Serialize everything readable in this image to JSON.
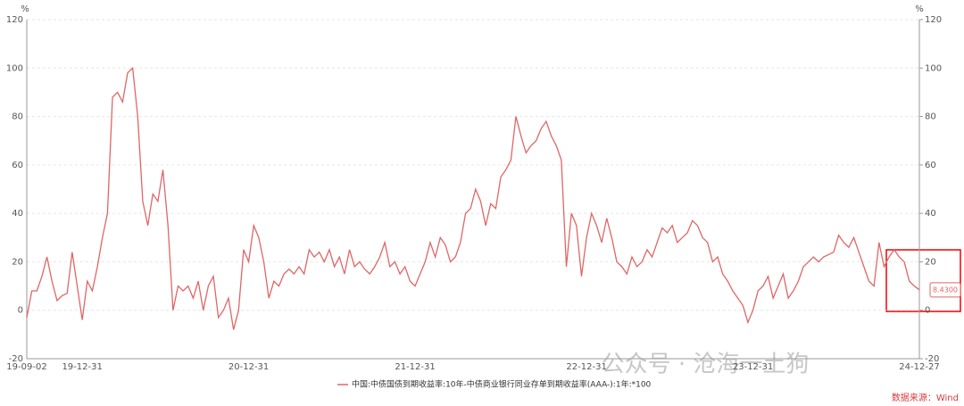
{
  "chart_data": {
    "type": "line",
    "y_unit": "%",
    "y2_unit": "%",
    "categories": [
      "19-09-02",
      null,
      null,
      null,
      null,
      null,
      null,
      null,
      null,
      null,
      null,
      "19-12-31",
      null,
      null,
      null,
      null,
      null,
      null,
      null,
      null,
      null,
      null,
      null,
      null,
      null,
      null,
      null,
      null,
      null,
      null,
      null,
      null,
      null,
      null,
      null,
      null,
      null,
      null,
      null,
      null,
      null,
      null,
      null,
      null,
      "20-12-31",
      null,
      null,
      null,
      null,
      null,
      null,
      null,
      null,
      null,
      null,
      null,
      null,
      null,
      null,
      null,
      null,
      null,
      null,
      null,
      null,
      null,
      null,
      null,
      null,
      null,
      null,
      null,
      null,
      null,
      null,
      null,
      null,
      "21-12-31",
      null,
      null,
      null,
      null,
      null,
      null,
      null,
      null,
      null,
      null,
      null,
      null,
      null,
      null,
      null,
      null,
      null,
      null,
      null,
      null,
      null,
      null,
      null,
      null,
      null,
      null,
      null,
      null,
      null,
      null,
      null,
      null,
      null,
      "22-12-31",
      null,
      null,
      null,
      null,
      null,
      null,
      null,
      null,
      null,
      null,
      null,
      null,
      null,
      null,
      null,
      null,
      null,
      null,
      null,
      null,
      null,
      null,
      null,
      null,
      null,
      null,
      null,
      null,
      null,
      null,
      null,
      null,
      "23-12-31",
      null,
      null,
      null,
      null,
      null,
      null,
      null,
      null,
      null,
      null,
      null,
      null,
      null,
      null,
      null,
      null,
      null,
      null,
      null,
      null,
      null,
      null,
      null,
      null,
      null,
      null,
      null,
      null,
      null,
      null,
      null,
      null,
      "24-12-27"
    ],
    "series": [
      {
        "name": "中国:中债国债到期收益率:10年-中债商业银行同业存单到期收益率(AAA-):1年:*100",
        "color": "#e06666",
        "values": [
          -3,
          8,
          8,
          14,
          22,
          12,
          4,
          6,
          7,
          24,
          10,
          -4,
          12,
          8,
          18,
          30,
          40,
          88,
          90,
          86,
          98,
          100,
          80,
          45,
          35,
          48,
          45,
          58,
          35,
          0,
          10,
          8,
          10,
          5,
          12,
          0,
          10,
          14,
          -3,
          0,
          5,
          -8,
          0,
          25,
          20,
          35,
          30,
          20,
          5,
          12,
          10,
          15,
          17,
          15,
          18,
          15,
          25,
          22,
          24,
          20,
          25,
          18,
          22,
          15,
          25,
          18,
          20,
          17,
          15,
          18,
          22,
          28,
          18,
          20,
          15,
          18,
          12,
          10,
          15,
          20,
          28,
          22,
          30,
          27,
          20,
          22,
          28,
          40,
          42,
          50,
          45,
          35,
          44,
          42,
          55,
          58,
          62,
          80,
          72,
          65,
          68,
          70,
          75,
          78,
          72,
          68,
          62,
          18,
          40,
          35,
          14,
          30,
          40,
          35,
          28,
          38,
          30,
          20,
          18,
          15,
          22,
          18,
          20,
          25,
          22,
          28,
          34,
          32,
          35,
          28,
          30,
          32,
          37,
          35,
          30,
          28,
          20,
          22,
          15,
          12,
          8,
          5,
          2,
          -5,
          0,
          8,
          10,
          14,
          5,
          10,
          15,
          5,
          8,
          12,
          18,
          20,
          22,
          20,
          22,
          23,
          24,
          31,
          28,
          26,
          30,
          24,
          18,
          12,
          10,
          28,
          18,
          22,
          25,
          22,
          20,
          12,
          10,
          8.43
        ],
        "value_labels": [
          null,
          null,
          null,
          null,
          null,
          null,
          null,
          null,
          null,
          null,
          null,
          null,
          null,
          null,
          null,
          null,
          null,
          null,
          null,
          null,
          null,
          null,
          null,
          null,
          null,
          null,
          null,
          null,
          null,
          null,
          null,
          null,
          null,
          null,
          null,
          null,
          null,
          null,
          null,
          null,
          null,
          null,
          null,
          null,
          null,
          null,
          null,
          null,
          null,
          null,
          null,
          null,
          null,
          null,
          null,
          null,
          null,
          null,
          null,
          null,
          null,
          null,
          null,
          null,
          null,
          null,
          null,
          null,
          null,
          null,
          null,
          null,
          null,
          null,
          null,
          null,
          null,
          null,
          null,
          null,
          null,
          null,
          null,
          null,
          null,
          null,
          null,
          null,
          null,
          null,
          null,
          null,
          null,
          null,
          null,
          null,
          null,
          null,
          null,
          null,
          null,
          null,
          null,
          null,
          null,
          null,
          null,
          null,
          null,
          null,
          null,
          null,
          null,
          null,
          null,
          null,
          null,
          null,
          null,
          null,
          null,
          null,
          null,
          null,
          null,
          null,
          null,
          null,
          null,
          null,
          null,
          null,
          null,
          null,
          null,
          null,
          null,
          null,
          null,
          null,
          null,
          null,
          null,
          null,
          null,
          null,
          null,
          null,
          null,
          null,
          null,
          null,
          null,
          null,
          null,
          null,
          null,
          null,
          null,
          null,
          null,
          null,
          null,
          null,
          null,
          null,
          null,
          null,
          null,
          null,
          null,
          null,
          null,
          null,
          null,
          null,
          null,
          "8.4300"
        ]
      }
    ],
    "ylim": [
      -20,
      120
    ],
    "yticks": [
      -20,
      0,
      20,
      40,
      60,
      80,
      100,
      120
    ],
    "y2lim": [
      -20,
      120
    ],
    "y2ticks": [
      -20,
      0,
      20,
      40,
      60,
      80,
      100,
      120
    ],
    "grid": true,
    "watermark": "公众号 · 沧海一土狗",
    "source": "数据来源：Wind"
  }
}
